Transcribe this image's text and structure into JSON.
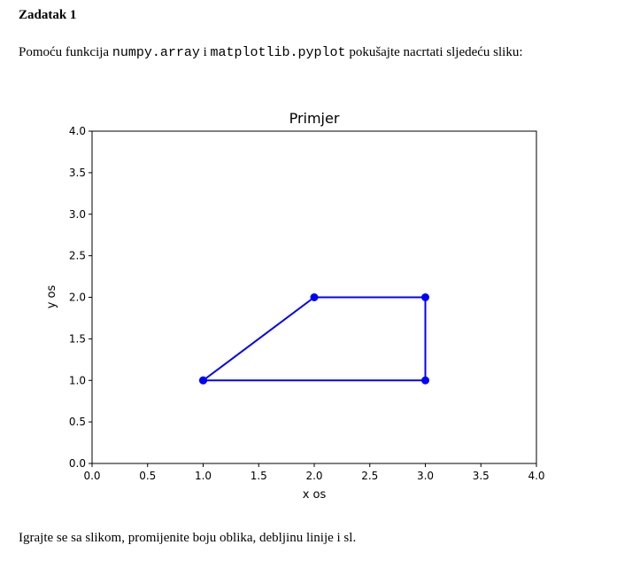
{
  "heading": "Zadatak 1",
  "intro": {
    "part1": "Pomoću funkcija ",
    "code1": "numpy.array",
    "part2": " i ",
    "code2": "matplotlib.pyplot",
    "part3": " pokušajte nacrtati sljedeću sliku:"
  },
  "outro": "Igrajte se sa slikom, promijenite boju oblika, debljinu linije i sl.",
  "chart_data": {
    "type": "line",
    "title": "Primjer",
    "xlabel": "x os",
    "ylabel": "y os",
    "xlim": [
      0.0,
      4.0
    ],
    "ylim": [
      0.0,
      4.0
    ],
    "x_ticks": [
      "0.0",
      "0.5",
      "1.0",
      "1.5",
      "2.0",
      "2.5",
      "3.0",
      "3.5",
      "4.0"
    ],
    "y_ticks": [
      "0.0",
      "0.5",
      "1.0",
      "1.5",
      "2.0",
      "2.5",
      "3.0",
      "3.5",
      "4.0"
    ],
    "grid": false,
    "series": [
      {
        "x": [
          1,
          2,
          3,
          3,
          1
        ],
        "y": [
          1,
          2,
          2,
          1,
          1
        ],
        "color": "#0000ff",
        "marker": "circle"
      }
    ]
  }
}
